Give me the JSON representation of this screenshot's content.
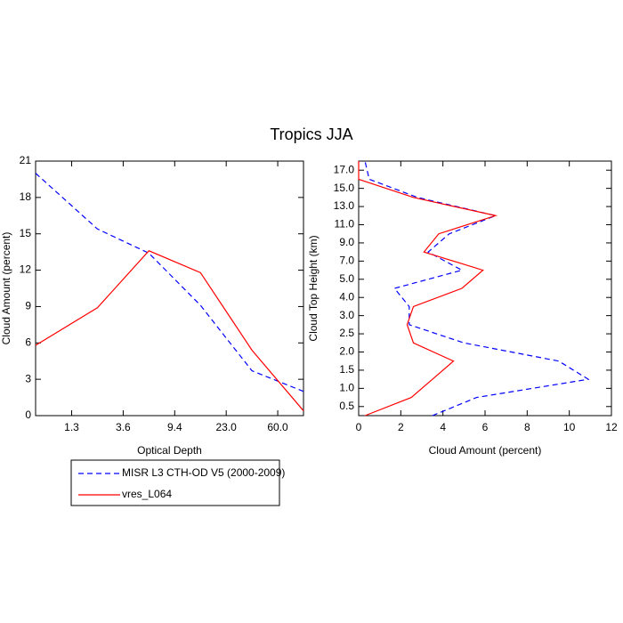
{
  "title": "Tropics JJA",
  "chart_data": [
    {
      "type": "line",
      "xlabel": "Optical Depth",
      "ylabel": "Cloud Amount (percent)",
      "x": [
        0.3,
        1.5,
        2.5,
        3.5,
        4.5,
        5.5
      ],
      "xlim": [
        0.3,
        5.5
      ],
      "xticks": [
        {
          "value": 1,
          "label": "1.3"
        },
        {
          "value": 2,
          "label": "3.6"
        },
        {
          "value": 3,
          "label": "9.4"
        },
        {
          "value": 4,
          "label": "23.0"
        },
        {
          "value": 5,
          "label": "60.0"
        }
      ],
      "ylim": [
        0,
        21
      ],
      "yticks": [
        0,
        3,
        6,
        9,
        12,
        15,
        18,
        21
      ],
      "series": [
        {
          "name": "MISR L3 CTH-OD V5 (2000-2009)",
          "color": "#0000ff",
          "line_style": "dashed",
          "values": [
            20.0,
            15.4,
            13.4,
            9.1,
            3.7,
            2.0
          ]
        },
        {
          "name": "vres_L064",
          "color": "#ff0000",
          "line_style": "solid",
          "values": [
            5.8,
            8.9,
            13.6,
            11.8,
            5.4,
            0.4
          ]
        }
      ]
    },
    {
      "type": "hline",
      "xlabel": "Cloud Amount (percent)",
      "ylabel": "Cloud Top Height (km)",
      "y": [
        0.5,
        1.5,
        2.5,
        3.5,
        4.5,
        5.5,
        6.5,
        7.5,
        8.5,
        9.5,
        10.5,
        11.5,
        12.5,
        13.5,
        14.5
      ],
      "ylim": [
        0.5,
        14.5
      ],
      "yticks": [
        {
          "value": 1,
          "label": "0.5"
        },
        {
          "value": 2,
          "label": "1.0"
        },
        {
          "value": 3,
          "label": "1.5"
        },
        {
          "value": 4,
          "label": "2.0"
        },
        {
          "value": 5,
          "label": "2.5"
        },
        {
          "value": 6,
          "label": "3.0"
        },
        {
          "value": 7,
          "label": "4.0"
        },
        {
          "value": 8,
          "label": "5.0"
        },
        {
          "value": 9,
          "label": "7.0"
        },
        {
          "value": 10,
          "label": "9.0"
        },
        {
          "value": 11,
          "label": "11.0"
        },
        {
          "value": 12,
          "label": "13.0"
        },
        {
          "value": 13,
          "label": "15.0"
        },
        {
          "value": 14,
          "label": "17.0"
        }
      ],
      "xlim": [
        0,
        12
      ],
      "xticks": [
        0,
        2,
        4,
        6,
        8,
        10,
        12
      ],
      "series": [
        {
          "color": "#0000ff",
          "line_style": "dashed",
          "values": [
            3.5,
            5.6,
            10.9,
            9.5,
            5.0,
            2.4,
            2.4,
            1.7,
            4.9,
            3.3,
            4.3,
            6.5,
            2.8,
            0.5,
            0.3
          ]
        },
        {
          "color": "#ff0000",
          "line_style": "solid",
          "values": [
            0.3,
            2.5,
            3.5,
            4.5,
            2.6,
            2.3,
            2.6,
            4.9,
            5.9,
            3.1,
            3.8,
            6.5,
            2.6,
            0.0,
            0.0
          ]
        }
      ]
    }
  ]
}
